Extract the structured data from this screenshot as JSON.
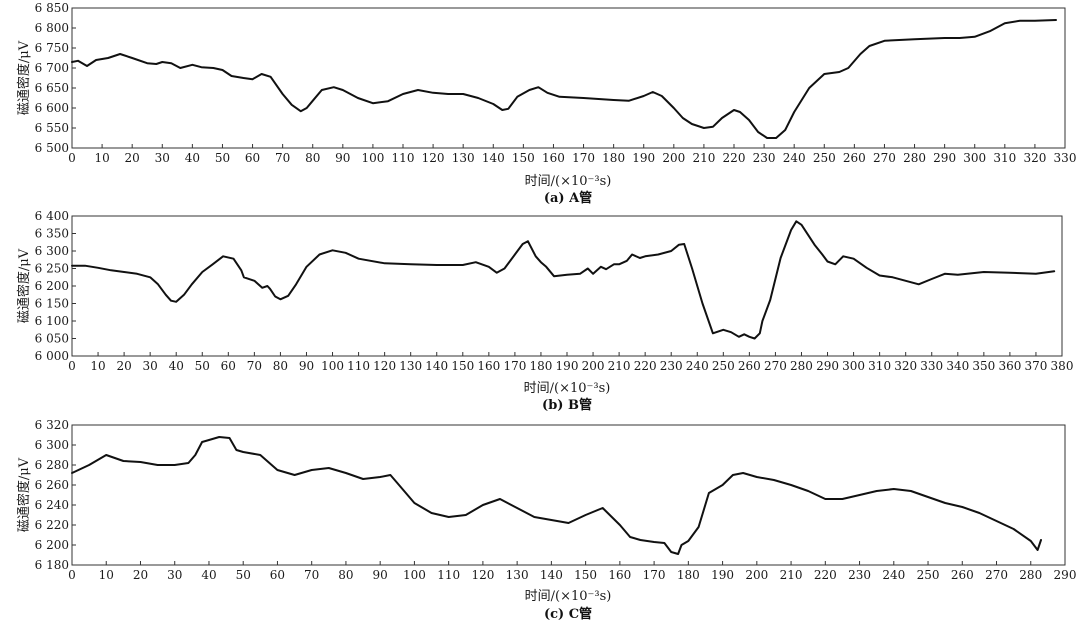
{
  "chart_data": [
    {
      "type": "line",
      "caption": "(a) A管",
      "xlabel": "时间/(×10⁻³s)",
      "ylabel": "磁通密度/μV",
      "xlim": [
        0,
        330
      ],
      "ylim": [
        6500,
        6850
      ],
      "xticks": [
        0,
        10,
        20,
        30,
        40,
        50,
        60,
        70,
        80,
        90,
        100,
        110,
        120,
        130,
        140,
        150,
        160,
        170,
        180,
        190,
        200,
        210,
        220,
        230,
        240,
        250,
        260,
        270,
        280,
        290,
        300,
        310,
        320,
        330
      ],
      "yticks": [
        6500,
        6550,
        6600,
        6650,
        6700,
        6750,
        6800,
        6850
      ],
      "ytick_labels": [
        "6 500",
        "6 550",
        "6 600",
        "6 650",
        "6 700",
        "6 750",
        "6 800",
        "6 850"
      ],
      "x": [
        0,
        2,
        5,
        8,
        12,
        16,
        20,
        25,
        28,
        30,
        33,
        36,
        40,
        43,
        47,
        50,
        53,
        57,
        60,
        63,
        66,
        70,
        73,
        76,
        78,
        80,
        83,
        87,
        90,
        95,
        100,
        105,
        110,
        115,
        120,
        125,
        130,
        135,
        140,
        143,
        145,
        148,
        152,
        155,
        158,
        162,
        170,
        180,
        185,
        190,
        193,
        196,
        200,
        203,
        206,
        210,
        213,
        216,
        220,
        222,
        225,
        228,
        231,
        234,
        237,
        240,
        245,
        250,
        255,
        258,
        262,
        265,
        270,
        280,
        290,
        295,
        300,
        305,
        310,
        315,
        320,
        327
      ],
      "y": [
        6715,
        6718,
        6705,
        6720,
        6725,
        6735,
        6725,
        6712,
        6710,
        6715,
        6712,
        6700,
        6708,
        6702,
        6700,
        6695,
        6680,
        6675,
        6672,
        6685,
        6678,
        6635,
        6608,
        6592,
        6600,
        6618,
        6645,
        6652,
        6645,
        6625,
        6612,
        6617,
        6635,
        6645,
        6638,
        6635,
        6635,
        6625,
        6610,
        6595,
        6598,
        6628,
        6645,
        6652,
        6638,
        6628,
        6625,
        6620,
        6618,
        6630,
        6640,
        6630,
        6600,
        6575,
        6560,
        6550,
        6553,
        6575,
        6595,
        6590,
        6570,
        6540,
        6525,
        6525,
        6545,
        6590,
        6650,
        6685,
        6690,
        6700,
        6735,
        6755,
        6768,
        6772,
        6775,
        6775,
        6778,
        6792,
        6812,
        6818,
        6818,
        6820
      ]
    },
    {
      "type": "line",
      "caption": "(b) B管",
      "xlabel": "时间/(×10⁻³s)",
      "ylabel": "磁通密度/μV",
      "xlim": [
        0,
        380
      ],
      "ylim": [
        6000,
        6400
      ],
      "xticks": [
        0,
        10,
        20,
        30,
        40,
        50,
        60,
        70,
        80,
        90,
        100,
        110,
        120,
        130,
        140,
        150,
        160,
        170,
        180,
        190,
        200,
        210,
        220,
        230,
        240,
        250,
        260,
        270,
        280,
        290,
        300,
        310,
        320,
        330,
        340,
        350,
        360,
        370,
        380
      ],
      "yticks": [
        6000,
        6050,
        6100,
        6150,
        6200,
        6250,
        6300,
        6350,
        6400
      ],
      "ytick_labels": [
        "6 000",
        "6 050",
        "6 100",
        "6 150",
        "6 200",
        "6 250",
        "6 300",
        "6 350",
        "6 400"
      ],
      "x": [
        0,
        5,
        10,
        15,
        20,
        25,
        30,
        33,
        36,
        38,
        40,
        43,
        46,
        50,
        54,
        58,
        62,
        65,
        66,
        70,
        73,
        75,
        76,
        78,
        80,
        83,
        86,
        90,
        95,
        100,
        105,
        110,
        120,
        130,
        140,
        150,
        155,
        160,
        163,
        166,
        170,
        173,
        175,
        178,
        180,
        182,
        185,
        190,
        195,
        198,
        200,
        203,
        205,
        208,
        210,
        213,
        215,
        218,
        220,
        225,
        230,
        233,
        235,
        238,
        242,
        246,
        250,
        253,
        256,
        258,
        260,
        262,
        264,
        265,
        268,
        272,
        276,
        278,
        280,
        285,
        288,
        290,
        293,
        296,
        300,
        305,
        310,
        315,
        320,
        325,
        330,
        335,
        340,
        350,
        360,
        370,
        377
      ],
      "y": [
        6258,
        6258,
        6252,
        6245,
        6240,
        6235,
        6225,
        6205,
        6175,
        6158,
        6155,
        6175,
        6205,
        6240,
        6262,
        6285,
        6278,
        6245,
        6225,
        6215,
        6195,
        6200,
        6192,
        6170,
        6162,
        6172,
        6205,
        6255,
        6290,
        6302,
        6295,
        6278,
        6265,
        6262,
        6260,
        6260,
        6268,
        6255,
        6238,
        6250,
        6290,
        6320,
        6328,
        6285,
        6268,
        6255,
        6228,
        6232,
        6235,
        6250,
        6235,
        6255,
        6248,
        6262,
        6262,
        6272,
        6290,
        6280,
        6285,
        6290,
        6300,
        6318,
        6320,
        6250,
        6150,
        6065,
        6075,
        6068,
        6055,
        6062,
        6055,
        6050,
        6065,
        6100,
        6160,
        6280,
        6360,
        6385,
        6375,
        6318,
        6290,
        6270,
        6262,
        6285,
        6278,
        6252,
        6230,
        6225,
        6215,
        6205,
        6220,
        6235,
        6232,
        6240,
        6238,
        6235,
        6242
      ]
    },
    {
      "type": "line",
      "caption": "(c) C管",
      "xlabel": "时间/(×10⁻³s)",
      "ylabel": "磁通密度/μV",
      "xlim": [
        0,
        290
      ],
      "ylim": [
        6180,
        6320
      ],
      "xticks": [
        0,
        10,
        20,
        30,
        40,
        50,
        60,
        70,
        80,
        90,
        100,
        110,
        120,
        130,
        140,
        150,
        160,
        170,
        180,
        190,
        200,
        210,
        220,
        230,
        240,
        250,
        260,
        270,
        280,
        290
      ],
      "yticks": [
        6180,
        6200,
        6220,
        6240,
        6260,
        6280,
        6300,
        6320
      ],
      "ytick_labels": [
        "6 180",
        "6 200",
        "6 220",
        "6 240",
        "6 260",
        "6 280",
        "6 300",
        "6 320"
      ],
      "x": [
        0,
        5,
        10,
        15,
        20,
        25,
        30,
        34,
        36,
        38,
        40,
        43,
        46,
        48,
        50,
        55,
        60,
        65,
        70,
        75,
        80,
        85,
        90,
        93,
        95,
        100,
        105,
        110,
        115,
        120,
        125,
        130,
        135,
        140,
        145,
        150,
        155,
        160,
        163,
        166,
        170,
        173,
        175,
        177,
        178,
        180,
        183,
        186,
        190,
        193,
        196,
        200,
        205,
        210,
        215,
        220,
        225,
        230,
        235,
        240,
        245,
        250,
        255,
        260,
        265,
        270,
        275,
        280,
        282,
        283
      ],
      "y": [
        6272,
        6280,
        6290,
        6284,
        6283,
        6280,
        6280,
        6282,
        6290,
        6303,
        6305,
        6308,
        6307,
        6295,
        6293,
        6290,
        6275,
        6270,
        6275,
        6277,
        6272,
        6266,
        6268,
        6270,
        6262,
        6242,
        6232,
        6228,
        6230,
        6240,
        6246,
        6237,
        6228,
        6225,
        6222,
        6230,
        6237,
        6220,
        6208,
        6205,
        6203,
        6202,
        6193,
        6191,
        6200,
        6204,
        6218,
        6252,
        6260,
        6270,
        6272,
        6268,
        6265,
        6260,
        6254,
        6246,
        6246,
        6250,
        6254,
        6256,
        6254,
        6248,
        6242,
        6238,
        6232,
        6224,
        6216,
        6204,
        6195,
        6205
      ]
    }
  ]
}
